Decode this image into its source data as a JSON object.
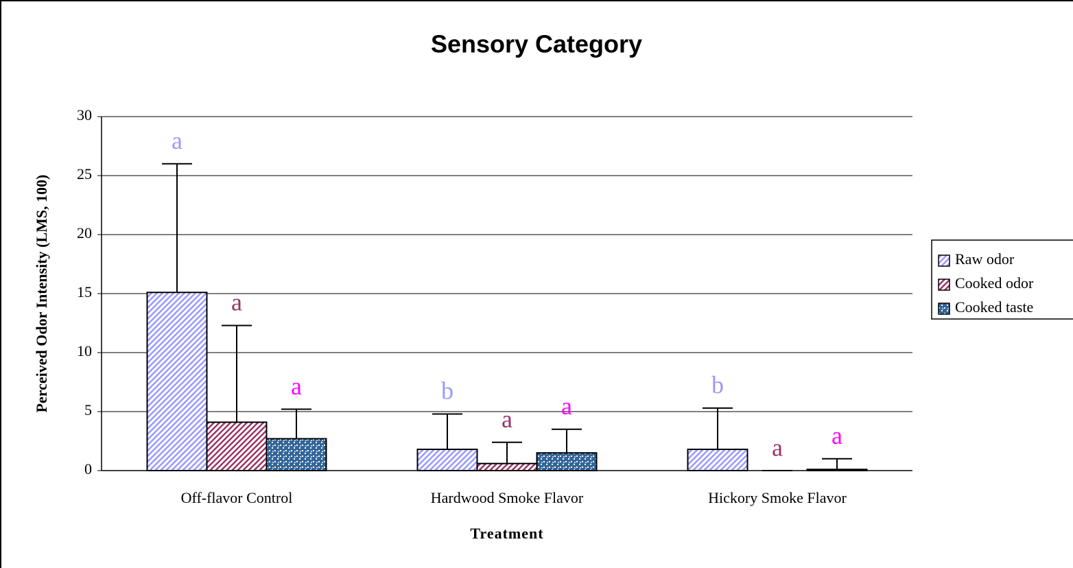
{
  "chart_data": {
    "type": "bar",
    "title": "Sensory Category",
    "x_label": "Treatment",
    "y_label": "Perceived Odor Intensity (LMS, 100)",
    "categories": [
      "Off-flavor Control",
      "Hardwood Smoke Flavor",
      "Hickory Smoke Flavor"
    ],
    "series": [
      {
        "name": "Raw odor",
        "color": "#9999ff",
        "pattern": "diagonal",
        "values": [
          15.1,
          1.8,
          1.8
        ],
        "errors": [
          10.9,
          3.0,
          3.5
        ],
        "labels": [
          "a",
          "b",
          "b"
        ]
      },
      {
        "name": "Cooked odor",
        "color": "#993366",
        "pattern": "diagonal",
        "values": [
          4.1,
          0.6,
          0
        ],
        "errors": [
          8.2,
          1.8,
          0
        ],
        "labels": [
          "a",
          "a",
          "a"
        ],
        "label_color": "#993366"
      },
      {
        "name": "Cooked taste",
        "color": "#336699",
        "pattern": "checker",
        "values": [
          2.7,
          1.5,
          0.1
        ],
        "errors": [
          2.5,
          2.0,
          0.9
        ],
        "labels": [
          "a",
          "a",
          "a"
        ],
        "label_color": "#ff00ff"
      }
    ],
    "ylim": [
      0,
      30
    ],
    "yticks": [
      0,
      5,
      10,
      15,
      20,
      25,
      30
    ],
    "grid": true,
    "legend": "right"
  }
}
